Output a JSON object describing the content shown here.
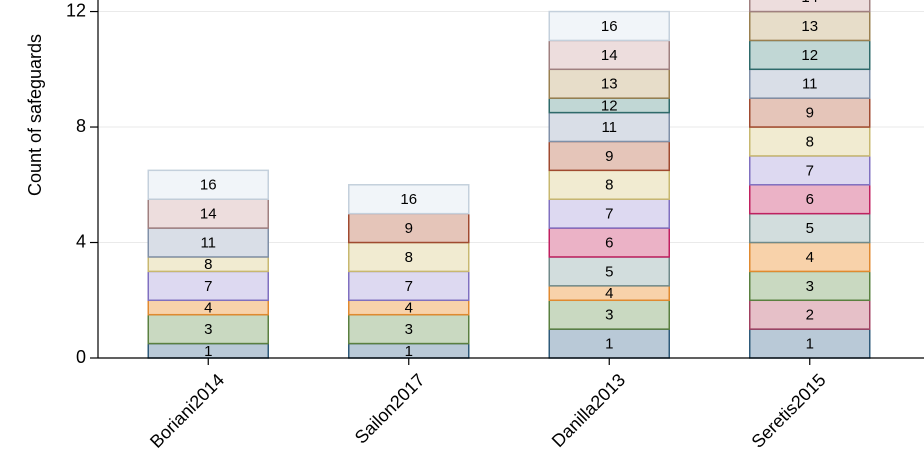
{
  "chart_data": {
    "type": "bar",
    "stacked": true,
    "ylabel": "Count of safeguards",
    "categories": [
      "Boriani2014",
      "Sailon2017",
      "Danilla2013",
      "Seretis2015"
    ],
    "ylim": [
      0,
      12.4
    ],
    "yticks": [
      0,
      4,
      8,
      12
    ],
    "grid": true,
    "series": [
      {
        "name": "1",
        "color": "#b9c9d7",
        "edgecolor": "#2e5a7a",
        "values": [
          0.5,
          0.5,
          1,
          1
        ]
      },
      {
        "name": "2",
        "color": "#e6c0c8",
        "edgecolor": "#a04060",
        "values": [
          null,
          null,
          null,
          1
        ]
      },
      {
        "name": "3",
        "color": "#c9d9c1",
        "edgecolor": "#5a8040",
        "values": [
          1,
          1,
          1,
          1
        ]
      },
      {
        "name": "4",
        "color": "#f8d2aa",
        "edgecolor": "#e08a30",
        "values": [
          0.5,
          0.5,
          0.5,
          1
        ]
      },
      {
        "name": "5",
        "color": "#d2dddd",
        "edgecolor": "#708a8a",
        "values": [
          null,
          null,
          1,
          1
        ]
      },
      {
        "name": "6",
        "color": "#ebb2c6",
        "edgecolor": "#c02060",
        "values": [
          null,
          null,
          1,
          1
        ]
      },
      {
        "name": "7",
        "color": "#ddd9f1",
        "edgecolor": "#8070c0",
        "values": [
          1,
          1,
          1,
          1
        ]
      },
      {
        "name": "8",
        "color": "#f1ebd1",
        "edgecolor": "#c8b870",
        "values": [
          0.5,
          1,
          1,
          1
        ]
      },
      {
        "name": "9",
        "color": "#e5c5b9",
        "edgecolor": "#a04a30",
        "values": [
          null,
          1,
          1,
          1
        ]
      },
      {
        "name": "11",
        "color": "#d9dee7",
        "edgecolor": "#8090a8",
        "values": [
          1,
          null,
          1,
          1
        ]
      },
      {
        "name": "12",
        "color": "#c1d7d5",
        "edgecolor": "#2e6a6a",
        "values": [
          null,
          null,
          0.5,
          1
        ]
      },
      {
        "name": "13",
        "color": "#e7ddc9",
        "edgecolor": "#9a8050",
        "values": [
          null,
          null,
          1,
          1
        ]
      },
      {
        "name": "14",
        "color": "#eddddd",
        "edgecolor": "#a08080",
        "values": [
          1,
          null,
          1,
          1
        ]
      },
      {
        "name": "16",
        "color": "#f1f5f9",
        "edgecolor": "#c4d0dc",
        "values": [
          1,
          1,
          1,
          null
        ]
      }
    ]
  }
}
